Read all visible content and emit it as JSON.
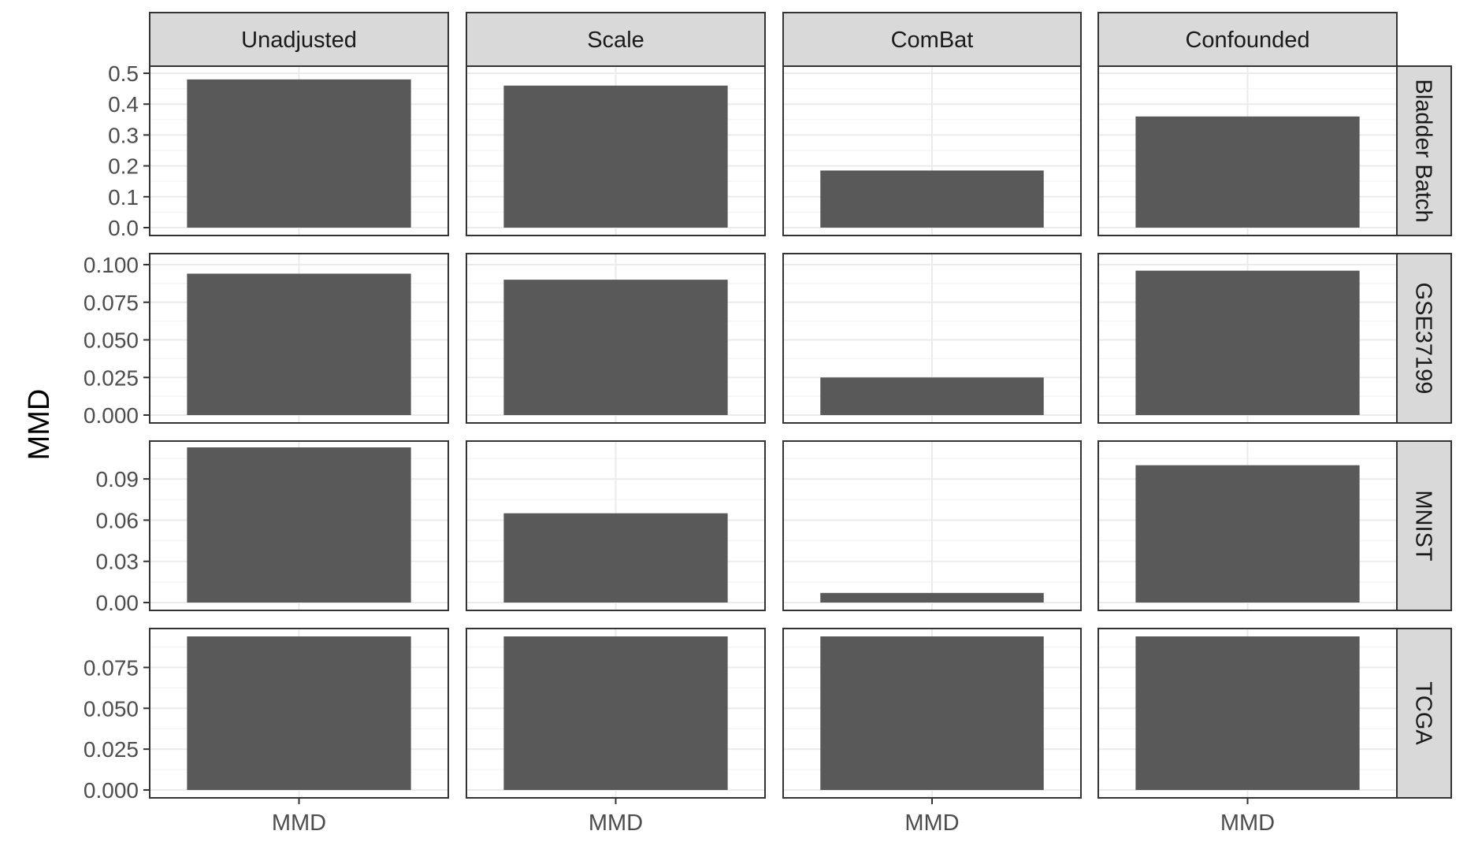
{
  "chart_data": {
    "type": "bar",
    "ylabel": "MMD",
    "xlabel": "",
    "categories": [
      "MMD"
    ],
    "col_facets": [
      "Unadjusted",
      "Scale",
      "ComBat",
      "Confounded"
    ],
    "row_facets": [
      {
        "label": "Bladder Batch",
        "ylim": [
          0,
          0.5
        ],
        "ticks": [
          0.0,
          0.1,
          0.2,
          0.3,
          0.4,
          0.5
        ],
        "tick_labels": [
          "0.0",
          "0.1",
          "0.2",
          "0.3",
          "0.4",
          "0.5"
        ],
        "values": [
          0.48,
          0.46,
          0.185,
          0.36
        ]
      },
      {
        "label": "GSE37199",
        "ylim": [
          0,
          0.1
        ],
        "ticks": [
          0.0,
          0.025,
          0.05,
          0.075,
          0.1
        ],
        "tick_labels": [
          "0.000",
          "0.025",
          "0.050",
          "0.075",
          "0.100"
        ],
        "values": [
          0.094,
          0.09,
          0.025,
          0.096
        ]
      },
      {
        "label": "MNIST",
        "ylim": [
          0,
          0.113
        ],
        "ticks": [
          0.0,
          0.03,
          0.06,
          0.09
        ],
        "tick_labels": [
          "0.00",
          "0.03",
          "0.06",
          "0.09"
        ],
        "values": [
          0.113,
          0.065,
          0.007,
          0.1
        ]
      },
      {
        "label": "TCGA",
        "ylim": [
          0,
          0.094
        ],
        "ticks": [
          0.0,
          0.025,
          0.05,
          0.075
        ],
        "tick_labels": [
          "0.000",
          "0.025",
          "0.050",
          "0.075"
        ],
        "values": [
          0.094,
          0.094,
          0.094,
          0.094
        ]
      }
    ],
    "grid": true,
    "colors": {
      "bar": "#595959",
      "strip_fill": "#d9d9d9",
      "panel_border": "#333333",
      "grid_major": "#ebebeb",
      "grid_minor": "#f5f5f5",
      "text": "#4d4d4d"
    }
  }
}
